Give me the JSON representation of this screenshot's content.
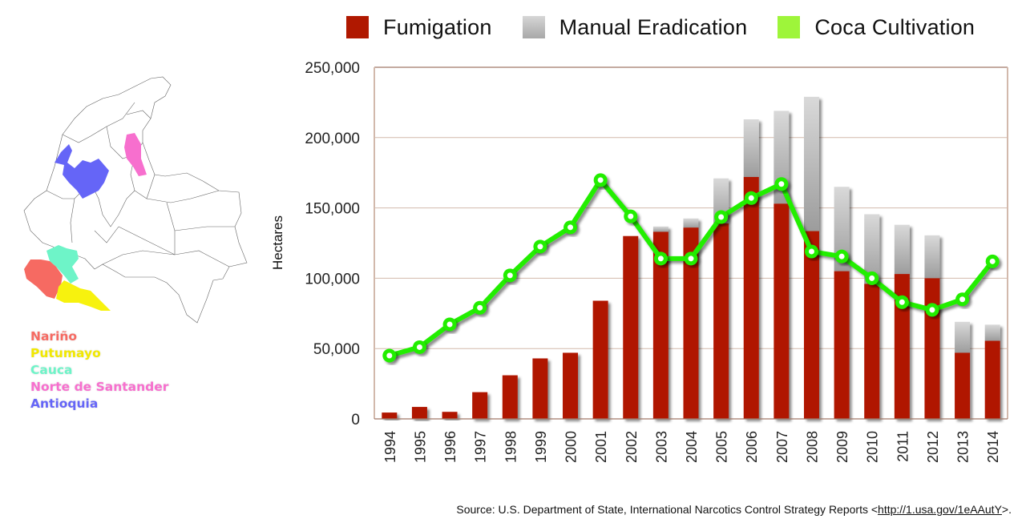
{
  "chart_data": {
    "type": "bar",
    "stacked": true,
    "title": "",
    "xlabel": "",
    "ylabel": "Hectares",
    "ylim": [
      0,
      250000
    ],
    "yticks": [
      "0",
      "50,000",
      "100,000",
      "150,000",
      "200,000",
      "250,000"
    ],
    "ytick_values": [
      0,
      50000,
      100000,
      150000,
      200000,
      250000
    ],
    "grid": true,
    "legend_position": "top",
    "categories": [
      "1994",
      "1995",
      "1996",
      "1997",
      "1998",
      "1999",
      "2000",
      "2001",
      "2002",
      "2003",
      "2004",
      "2005",
      "2006",
      "2007",
      "2008",
      "2009",
      "2010",
      "2011",
      "2012",
      "2013",
      "2014"
    ],
    "series": [
      {
        "name": "Fumigation",
        "type": "bar",
        "color": "#b01800",
        "values": [
          4500,
          8500,
          5000,
          19000,
          31000,
          43000,
          47000,
          84000,
          130000,
          133000,
          136000,
          139000,
          172000,
          153000,
          133500,
          105000,
          96000,
          103000,
          100000,
          47000,
          55500
        ]
      },
      {
        "name": "Manual Eradication",
        "type": "bar",
        "color": "#bdbdbd",
        "values": [
          0,
          0,
          0,
          0,
          0,
          0,
          0,
          0,
          0,
          3800,
          6500,
          32000,
          41000,
          66000,
          95500,
          60000,
          49500,
          35000,
          30500,
          22000,
          11500
        ]
      },
      {
        "name": "Coca Cultivation",
        "type": "line",
        "color": "#22ee00",
        "values": [
          45000,
          51000,
          67200,
          79000,
          102000,
          122500,
          136200,
          169800,
          144000,
          114000,
          114000,
          143500,
          157000,
          167000,
          119000,
          115500,
          100000,
          83000,
          77500,
          85000,
          112000
        ]
      }
    ]
  },
  "legend": [
    {
      "label": "Fumigation",
      "color": "#b01800"
    },
    {
      "label": "Manual Eradication",
      "color": "#bdbdbd"
    },
    {
      "label": "Coca Cultivation",
      "color": "#9ef53a"
    }
  ],
  "map": {
    "regions": [
      {
        "label": "Nariño",
        "color": "#f66a62"
      },
      {
        "label": "Putumayo",
        "color": "#f7f20e"
      },
      {
        "label": "Cauca",
        "color": "#6ef4c8"
      },
      {
        "label": "Norte de Santander",
        "color": "#f76fce"
      },
      {
        "label": "Antioquia",
        "color": "#6565f7"
      }
    ]
  },
  "source": {
    "prefix": "Source: U.S. Department of State, International Narcotics Control Strategy Reports <",
    "link": "http://1.usa.gov/1eAAutY",
    "suffix": ">."
  }
}
